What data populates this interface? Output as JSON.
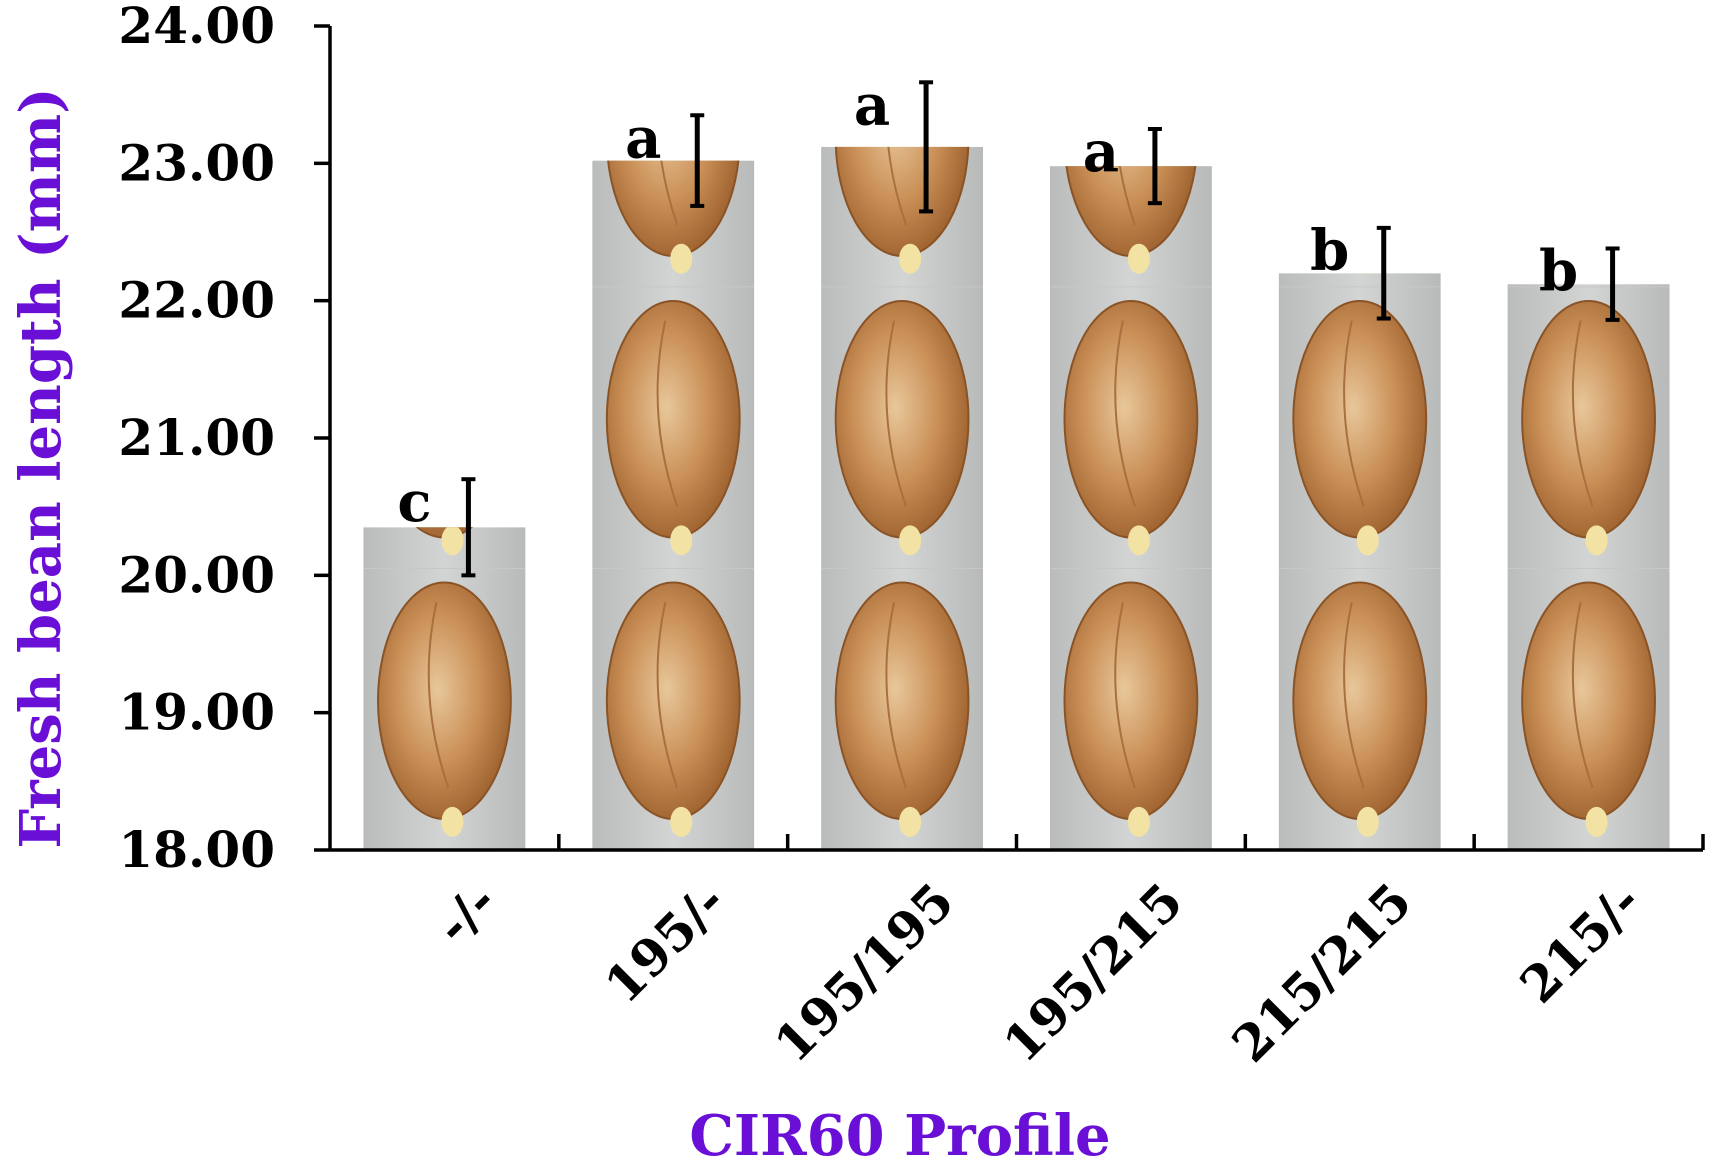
{
  "chart_data": {
    "type": "bar",
    "xlabel": "CIR60 Profile",
    "ylabel": "Fresh bean length (mm)",
    "ylim": [
      18,
      24
    ],
    "ytick_values": [
      18,
      19,
      20,
      21,
      22,
      23,
      24
    ],
    "ytick_labels": [
      "18.00",
      "19.00",
      "20.00",
      "21.00",
      "22.00",
      "23.00",
      "24.00"
    ],
    "categories": [
      "-/-",
      "195/-",
      "195/195",
      "195/215",
      "215/215",
      "215/-"
    ],
    "values": [
      20.35,
      23.02,
      23.12,
      22.98,
      22.2,
      22.12
    ],
    "error": [
      0.35,
      0.33,
      0.47,
      0.27,
      0.33,
      0.26
    ],
    "significance": [
      "c",
      "a",
      "a",
      "a",
      "b",
      "b"
    ],
    "bar_fill": "bean-photo",
    "colors": {
      "axis_title": "#6a0fd6",
      "axis": "#000000"
    },
    "grid": false
  }
}
